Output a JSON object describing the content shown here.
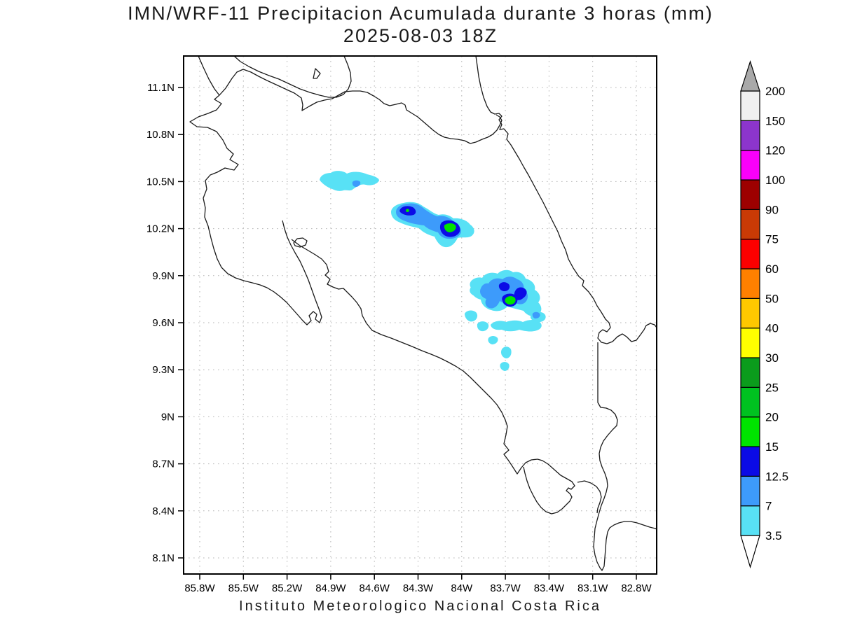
{
  "header": {
    "title": "IMN/WRF-11 Precipitacion Acumulada durante 3 horas (mm)",
    "subtitle": "2025-08-03 18Z"
  },
  "footer": {
    "text": "Instituto Meteorologico Nacional Costa Rica"
  },
  "chart_data": {
    "type": "contour_map",
    "title": "IMN/WRF-11 Precipitacion Acumulada durante 3 horas (mm)",
    "subtitle": "2025-08-03 18Z",
    "region": "Costa Rica",
    "units": "mm",
    "grid": "dotted",
    "legend_position": "right",
    "x_axis": {
      "ticks": [
        "85.8W",
        "85.5W",
        "85.2W",
        "84.9W",
        "84.6W",
        "84.3W",
        "84W",
        "83.7W",
        "83.4W",
        "83.1W",
        "82.8W"
      ]
    },
    "y_axis": {
      "ticks": [
        "11.1N",
        "10.8N",
        "10.5N",
        "10.2N",
        "9.9N",
        "9.6N",
        "9.3N",
        "9N",
        "8.7N",
        "8.4N",
        "8.1N"
      ]
    },
    "colorbar": {
      "labels_top_to_bottom": [
        "200",
        "150",
        "120",
        "100",
        "90",
        "75",
        "60",
        "50",
        "40",
        "30",
        "25",
        "20",
        "15",
        "12.5",
        "7",
        "3.5"
      ],
      "bands_bottom_to_top": [
        {
          "min": "3.5",
          "color": "#58E1F5"
        },
        {
          "min": "7",
          "color": "#3D9BFB"
        },
        {
          "min": "12.5",
          "color": "#0B0BE6"
        },
        {
          "min": "15",
          "color": "#00E400"
        },
        {
          "min": "20",
          "color": "#00C220"
        },
        {
          "min": "25",
          "color": "#0B9C1C"
        },
        {
          "min": "30",
          "color": "#FFFF00"
        },
        {
          "min": "40",
          "color": "#FFC800"
        },
        {
          "min": "50",
          "color": "#FF8000"
        },
        {
          "min": "60",
          "color": "#FC0000"
        },
        {
          "min": "75",
          "color": "#C93A05"
        },
        {
          "min": "90",
          "color": "#9D0000"
        },
        {
          "min": "100",
          "color": "#FA00FA"
        },
        {
          "min": "120",
          "color": "#8C35CC"
        },
        {
          "min": "150",
          "color": "#F0F0F0"
        }
      ],
      "over_arrow_color": "#A9A9A9",
      "under_arrow_color": "#FFFFFF"
    },
    "precip_areas": [
      {
        "approx_center": "10.5N 84.75W",
        "max_band_mm": "7-12.5"
      },
      {
        "approx_center": "10.2N 84.1W",
        "max_band_mm": "15-20"
      },
      {
        "approx_center": "9.7N 83.6W",
        "max_band_mm": "15-20"
      }
    ]
  }
}
